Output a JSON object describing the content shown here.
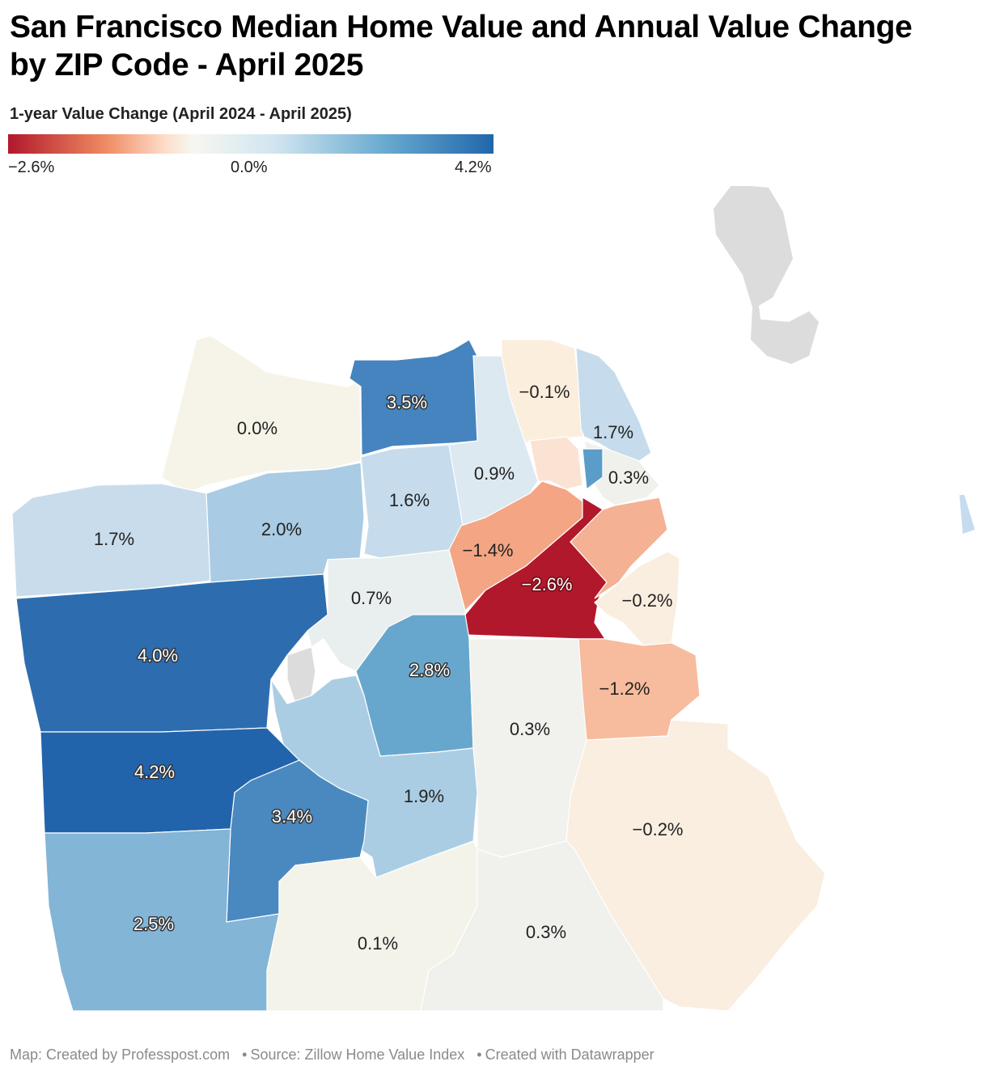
{
  "title": "San Francisco Median Home Value and Annual Value Change by ZIP Code - April 2025",
  "legend": {
    "title": "1-year Value Change (April 2024 - April 2025)",
    "min_label": "−2.6%",
    "mid_label": "0.0%",
    "max_label": "4.2%",
    "colors": [
      "#b2182b",
      "#ef8a62",
      "#fddbc7",
      "#f7f7f0",
      "#d1e5f0",
      "#67a9cf",
      "#2166ac"
    ]
  },
  "zip_areas": [
    {
      "label": "0.0%",
      "value": 0.0
    },
    {
      "label": "3.5%",
      "value": 3.5
    },
    {
      "label": "−0.1%",
      "value": -0.1
    },
    {
      "label": "1.7%",
      "value": 1.7
    },
    {
      "label": "0.9%",
      "value": 0.9
    },
    {
      "label": "0.3%",
      "value": 0.3
    },
    {
      "label": "1.7%",
      "value": 1.7
    },
    {
      "label": "2.0%",
      "value": 2.0
    },
    {
      "label": "1.6%",
      "value": 1.6
    },
    {
      "label": "−1.4%",
      "value": -1.4
    },
    {
      "label": "−2.6%",
      "value": -2.6
    },
    {
      "label": "0.7%",
      "value": 0.7
    },
    {
      "label": "−0.2%",
      "value": -0.2
    },
    {
      "label": "4.0%",
      "value": 4.0
    },
    {
      "label": "2.8%",
      "value": 2.8
    },
    {
      "label": "−1.2%",
      "value": -1.2
    },
    {
      "label": "0.3%",
      "value": 0.3
    },
    {
      "label": "4.2%",
      "value": 4.2
    },
    {
      "label": "1.9%",
      "value": 1.9
    },
    {
      "label": "3.4%",
      "value": 3.4
    },
    {
      "label": "−0.2%",
      "value": -0.2
    },
    {
      "label": "2.5%",
      "value": 2.5
    },
    {
      "label": "0.1%",
      "value": 0.1
    },
    {
      "label": "0.3%",
      "value": 0.3
    }
  ],
  "footer": {
    "credit": "Map: Created by Professpost.com",
    "source": "Source: Zillow Home Value Index",
    "tool": "Created with Datawrapper"
  }
}
